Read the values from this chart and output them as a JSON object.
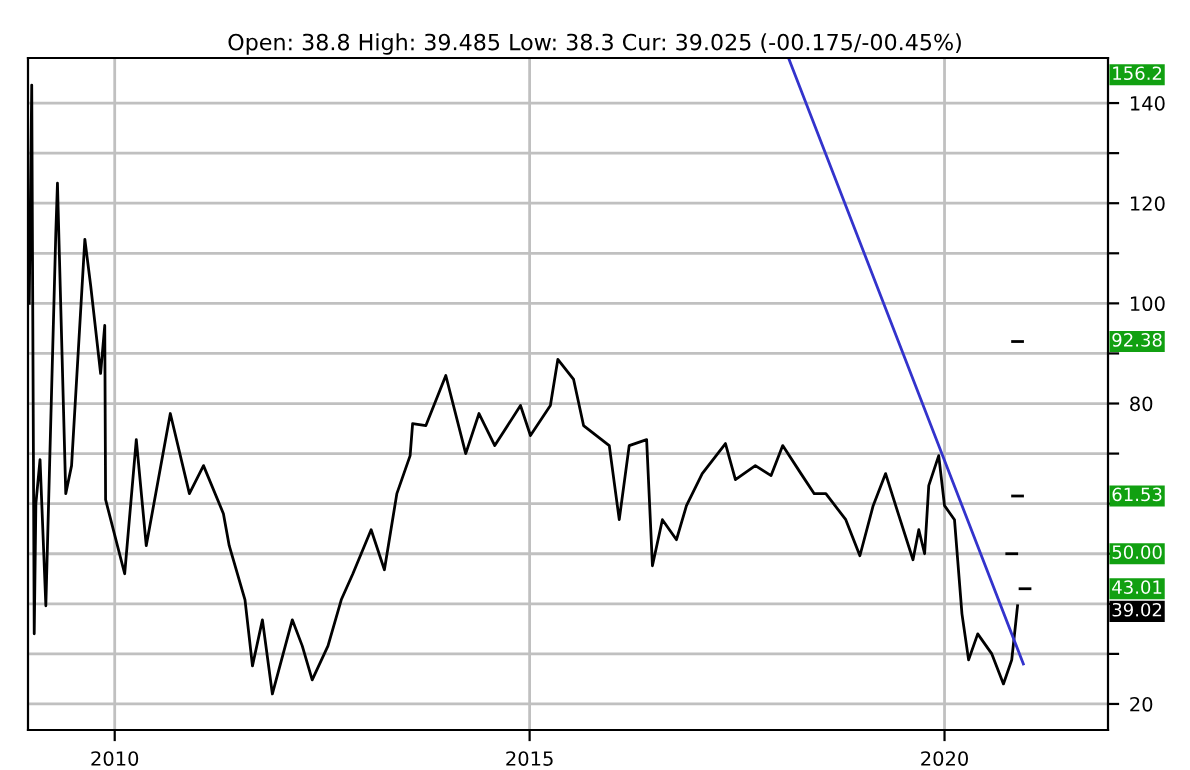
{
  "chart_data": {
    "type": "line",
    "subtitle": "Open: 38.8 High: 39.485 Low: 38.3 Cur: 39.025 (-00.175/-00.45%)",
    "xlim": [
      2008.955,
      2021.97
    ],
    "ylim": [
      14.8,
      149
    ],
    "xticks": [
      2010,
      2015,
      2020
    ],
    "yticks": [
      20,
      {
        "value": 30,
        "label": null
      },
      {
        "value": 40,
        "label": null
      },
      {
        "value": 50,
        "label": null
      },
      {
        "value": 60,
        "label": null
      },
      {
        "value": 70,
        "label": null
      },
      80,
      {
        "value": 90,
        "label": null
      },
      100,
      {
        "value": 110,
        "label": null
      },
      120,
      {
        "value": 130,
        "label": null
      },
      140
    ],
    "grid": true,
    "legend": false,
    "line_style": "solid",
    "marker": "none",
    "series": [
      {
        "color": "#000000",
        "x": [
          2008.97,
          2009.0,
          2009.03,
          2009.05,
          2009.1,
          2009.17,
          2009.29,
          2009.31,
          2009.41,
          2009.48,
          2009.64,
          2009.71,
          2009.83,
          2009.88,
          2009.89,
          2010.12,
          2010.26,
          2010.38,
          2010.67,
          2010.9,
          2011.07,
          2011.31,
          2011.38,
          2011.57,
          2011.66,
          2011.78,
          2011.9,
          2012.14,
          2012.26,
          2012.38,
          2012.57,
          2012.73,
          2012.87,
          2013.09,
          2013.25,
          2013.4,
          2013.56,
          2013.59,
          2013.75,
          2013.99,
          2014.23,
          2014.39,
          2014.58,
          2014.89,
          2015.01,
          2015.25,
          2015.34,
          2015.53,
          2015.65,
          2015.96,
          2016.08,
          2016.2,
          2016.41,
          2016.48,
          2016.6,
          2016.77,
          2016.89,
          2017.08,
          2017.36,
          2017.48,
          2017.72,
          2017.91,
          2018.05,
          2018.27,
          2018.43,
          2018.57,
          2018.81,
          2018.98,
          2019.14,
          2019.29,
          2019.45,
          2019.62,
          2019.69,
          2019.76,
          2019.81,
          2019.93,
          2020.0,
          2020.12,
          2020.21,
          2020.29,
          2020.4,
          2020.57,
          2020.71,
          2020.81,
          2020.88
        ],
        "values": [
          100,
          143.6,
          34,
          60,
          68.8,
          39.6,
          114,
          124,
          62,
          67.6,
          112.8,
          103.6,
          86,
          95.6,
          60.8,
          46,
          72.8,
          51.6,
          78,
          62,
          67.6,
          58,
          51.6,
          40.8,
          27.6,
          36.8,
          22,
          36.8,
          31.6,
          24.8,
          31.6,
          40.8,
          46,
          54.8,
          46.8,
          62,
          69.6,
          76,
          75.6,
          85.6,
          70,
          78,
          71.6,
          79.6,
          73.6,
          79.6,
          88.8,
          84.8,
          75.6,
          71.6,
          56.8,
          71.6,
          72.8,
          47.6,
          56.8,
          52.8,
          59.6,
          66,
          72,
          64.8,
          67.6,
          65.6,
          71.6,
          66,
          62,
          62,
          56.8,
          49.6,
          59.6,
          66,
          57.6,
          48.8,
          54.8,
          50,
          63.6,
          69.6,
          59.6,
          56.8,
          38,
          28.8,
          34,
          30,
          24,
          28.8,
          39.6
        ]
      },
      {
        "color": "#3333cc",
        "x": [
          2018.12,
          2020.95
        ],
        "values": [
          149,
          28
        ]
      },
      {
        "color": "#000000",
        "x": [
          2020.82,
          2020.94
        ],
        "values": [
          92.38,
          92.38
        ]
      },
      {
        "color": "#000000",
        "x": [
          2020.82,
          2020.94
        ],
        "values": [
          61.53,
          61.53
        ]
      },
      {
        "color": "#000000",
        "x": [
          2020.75,
          2020.87
        ],
        "values": [
          50.0,
          50.0
        ]
      },
      {
        "color": "#000000",
        "x": [
          2020.91,
          2021.03
        ],
        "values": [
          43.01,
          43.01
        ]
      }
    ],
    "annotations": [
      "156.2",
      "92.38",
      "61.53",
      "50.00",
      "43.01",
      "39.02"
    ]
  }
}
